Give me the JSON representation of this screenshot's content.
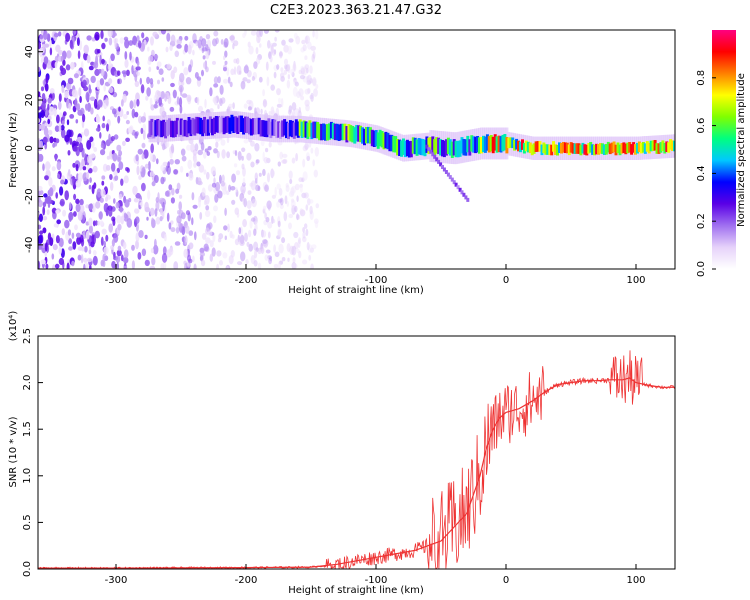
{
  "chart_data": [
    {
      "type": "heatmap",
      "title": "C2E3.2023.363.21.47.G32",
      "xlabel": "Height of straight line (km)",
      "ylabel": "Frequency (Hz)",
      "xlim": [
        -360,
        130
      ],
      "ylim": [
        -50,
        49
      ],
      "x_ticks": [
        "-300",
        "-200",
        "-100",
        "0",
        "100"
      ],
      "y_ticks": [
        "-40",
        "-20",
        "0",
        "20",
        "40"
      ],
      "colorbar": {
        "label": "Normalized spectral amplitude",
        "range": [
          0.0,
          1.0
        ],
        "ticks": [
          "0.0",
          "0.2",
          "0.4",
          "0.6",
          "0.8"
        ],
        "colors": [
          "#ffffff",
          "#e6d2fa",
          "#a070f0",
          "#5a00e6",
          "#0000ff",
          "#00c8ff",
          "#00ff80",
          "#80ff00",
          "#ffff00",
          "#ff8000",
          "#ff0000",
          "#ff0080"
        ]
      },
      "ridge": {
        "x": [
          -270,
          -240,
          -210,
          -180,
          -160,
          -140,
          -120,
          -100,
          -80,
          -60,
          -40,
          -20,
          0,
          20,
          60,
          100,
          130
        ],
        "frequency": [
          8,
          9,
          10,
          8,
          8,
          7,
          6,
          4,
          0,
          1,
          0,
          2,
          2,
          0,
          0,
          0,
          1
        ]
      },
      "grid": false,
      "legend": "none"
    },
    {
      "type": "line",
      "title": "",
      "xlabel": "Height of straight line (km)",
      "ylabel": "SNR (10 * v/v)",
      "y_multiplier": "(x10⁴)",
      "xlim": [
        -360,
        130
      ],
      "ylim": [
        0,
        2.5
      ],
      "x_ticks": [
        "-300",
        "-200",
        "-100",
        "0",
        "100"
      ],
      "y_ticks": [
        "0.0",
        "0.5",
        "1.0",
        "1.5",
        "2.0",
        "2.5"
      ],
      "series": [
        {
          "color": "#ee3333",
          "x": [
            -360,
            -300,
            -200,
            -150,
            -130,
            -110,
            -90,
            -70,
            -50,
            -40,
            -30,
            -25,
            -20,
            -15,
            -10,
            -5,
            0,
            10,
            20,
            30,
            40,
            50,
            60,
            70,
            80,
            90,
            95,
            100,
            110,
            120,
            130
          ],
          "y": [
            0.01,
            0.01,
            0.015,
            0.02,
            0.05,
            0.1,
            0.15,
            0.2,
            0.3,
            0.45,
            0.6,
            0.8,
            1.0,
            1.3,
            1.5,
            1.62,
            1.68,
            1.72,
            1.8,
            1.9,
            1.98,
            2.0,
            2.02,
            2.02,
            2.03,
            2.03,
            2.05,
            2.0,
            1.97,
            1.95,
            1.95
          ]
        }
      ],
      "grid": false,
      "legend": "none"
    }
  ]
}
